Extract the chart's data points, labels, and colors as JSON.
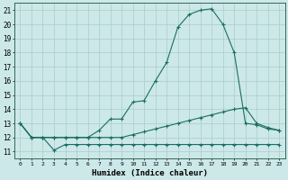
{
  "title": "",
  "xlabel": "Humidex (Indice chaleur)",
  "ylabel": "",
  "background_color": "#cce8e8",
  "grid_color": "#b0d8d8",
  "line_color": "#1a6e60",
  "xlim": [
    -0.5,
    23.5
  ],
  "ylim": [
    10.5,
    21.5
  ],
  "xticks": [
    0,
    1,
    2,
    3,
    4,
    5,
    6,
    7,
    8,
    9,
    10,
    11,
    12,
    13,
    14,
    15,
    16,
    17,
    18,
    19,
    20,
    21,
    22,
    23
  ],
  "yticks": [
    11,
    12,
    13,
    14,
    15,
    16,
    17,
    18,
    19,
    20,
    21
  ],
  "series": [
    {
      "x": [
        0,
        1,
        2,
        3,
        4,
        5,
        6,
        7,
        8,
        9,
        10,
        11,
        12,
        13,
        14,
        15,
        16,
        17,
        18,
        19,
        20,
        21,
        22,
        23
      ],
      "y": [
        13,
        12,
        12,
        11.1,
        11.5,
        11.5,
        11.5,
        11.5,
        11.5,
        11.5,
        11.5,
        11.5,
        11.5,
        11.5,
        11.5,
        11.5,
        11.5,
        11.5,
        11.5,
        11.5,
        11.5,
        11.5,
        11.5,
        11.5
      ]
    },
    {
      "x": [
        0,
        1,
        2,
        3,
        4,
        5,
        6,
        7,
        8,
        9,
        10,
        11,
        12,
        13,
        14,
        15,
        16,
        17,
        18,
        19,
        20,
        21,
        22,
        23
      ],
      "y": [
        13,
        12,
        12,
        12,
        12,
        12,
        12,
        12,
        12,
        12,
        12.2,
        12.4,
        12.6,
        12.8,
        13.0,
        13.2,
        13.4,
        13.6,
        13.8,
        14.0,
        14.1,
        13.0,
        12.7,
        12.5
      ]
    },
    {
      "x": [
        0,
        1,
        2,
        3,
        4,
        5,
        6,
        7,
        8,
        9,
        10,
        11,
        12,
        13,
        14,
        15,
        16,
        17,
        18,
        19,
        20,
        21,
        22,
        23
      ],
      "y": [
        13,
        12,
        12,
        12,
        12,
        12,
        12,
        12.5,
        13.3,
        13.3,
        14.5,
        14.6,
        16.0,
        17.3,
        19.8,
        20.7,
        21.0,
        21.1,
        20.0,
        18.0,
        13.0,
        12.9,
        12.6,
        12.5
      ]
    }
  ],
  "figsize": [
    3.2,
    2.0
  ],
  "dpi": 100
}
